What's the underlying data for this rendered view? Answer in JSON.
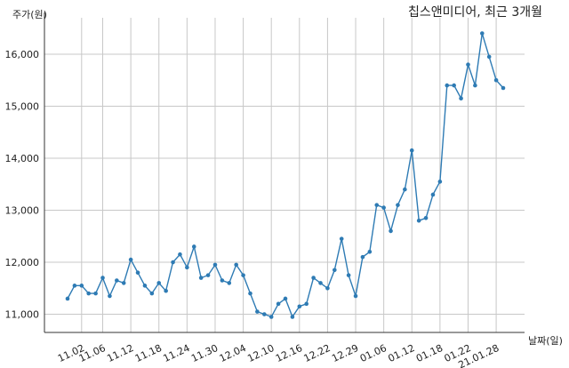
{
  "chart_data": {
    "type": "line",
    "title": "칩스앤미디어, 최근 3개월",
    "ylabel": "주가(원)",
    "xlabel": "날짜(일)",
    "ylim": [
      10650,
      16700
    ],
    "yticks": [
      11000,
      12000,
      13000,
      14000,
      15000,
      16000
    ],
    "ytick_labels": [
      "11,000",
      "12,000",
      "13,000",
      "14,000",
      "15,000",
      "16,000"
    ],
    "xtick_labels": [
      "11.02",
      "11.06",
      "11.12",
      "11.18",
      "11.24",
      "11.30",
      "12.04",
      "12.10",
      "12.16",
      "12.22",
      "12.29",
      "01.06",
      "01.12",
      "01.18",
      "01.22",
      "21.01.28"
    ],
    "xtick_index": [
      2,
      5,
      9,
      13,
      17,
      21,
      25,
      29,
      33,
      37,
      41,
      45,
      49,
      53,
      57,
      61
    ],
    "grid": true,
    "series_color": "#2e7bb4",
    "series": [
      {
        "values": [
          11300,
          11550,
          11550,
          11400,
          11400,
          11700,
          11350,
          11650,
          11600,
          12050,
          11800,
          11550,
          11400,
          11600,
          11450,
          12000,
          12150,
          11900,
          12300,
          11700,
          11750,
          11950,
          11650,
          11600,
          11950,
          11750,
          11400,
          11050,
          11000,
          10950,
          11200,
          11300,
          10950,
          11150,
          11200,
          11700,
          11600,
          11500,
          11850,
          12450,
          11750,
          11350,
          12100,
          12200,
          13100,
          13050,
          12600,
          13100,
          13400,
          14150,
          12800,
          12850,
          13300,
          13550,
          15400,
          15400,
          15150,
          15800,
          15400,
          16400,
          15950,
          15500,
          15350
        ]
      }
    ]
  }
}
